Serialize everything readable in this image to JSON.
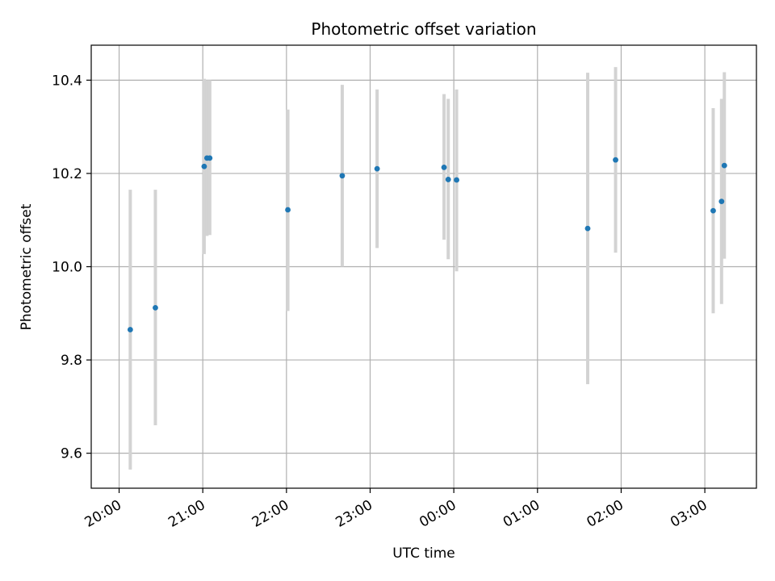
{
  "chart_data": {
    "type": "scatter",
    "title": "Photometric offset variation",
    "xlabel": "UTC time",
    "ylabel": "Photometric offset",
    "x_type": "time",
    "xlim": [
      "19:40",
      "03:37"
    ],
    "ylim": [
      9.525,
      10.475
    ],
    "x_ticks": [
      "20:00",
      "21:00",
      "22:00",
      "23:00",
      "00:00",
      "01:00",
      "02:00",
      "03:00"
    ],
    "y_ticks": [
      9.6,
      9.8,
      10.0,
      10.2,
      10.4
    ],
    "y_tick_labels": [
      "9.6",
      "9.8",
      "10.0",
      "10.2",
      "10.4"
    ],
    "grid": true,
    "colors": {
      "marker": "#1f77b4",
      "errorbar": "#d3d3d3",
      "grid": "#b0b0b0"
    },
    "series": [
      {
        "points": [
          {
            "x": "20:08",
            "y": 9.865,
            "ymin": 9.565,
            "ymax": 10.165
          },
          {
            "x": "20:26",
            "y": 9.912,
            "ymin": 9.66,
            "ymax": 10.165
          },
          {
            "x": "21:01",
            "y": 10.215,
            "ymin": 10.027,
            "ymax": 10.403
          },
          {
            "x": "21:03",
            "y": 10.233,
            "ymin": 10.066,
            "ymax": 10.4
          },
          {
            "x": "21:05",
            "y": 10.233,
            "ymin": 10.068,
            "ymax": 10.4
          },
          {
            "x": "22:01",
            "y": 10.122,
            "ymin": 9.905,
            "ymax": 10.337
          },
          {
            "x": "22:40",
            "y": 10.195,
            "ymin": 10.0,
            "ymax": 10.39
          },
          {
            "x": "23:05",
            "y": 10.21,
            "ymin": 10.04,
            "ymax": 10.38
          },
          {
            "x": "23:53",
            "y": 10.213,
            "ymin": 10.058,
            "ymax": 10.37
          },
          {
            "x": "23:56",
            "y": 10.187,
            "ymin": 10.016,
            "ymax": 10.36
          },
          {
            "x": "00:02",
            "y": 10.186,
            "ymin": 9.99,
            "ymax": 10.38
          },
          {
            "x": "01:36",
            "y": 10.082,
            "ymin": 9.748,
            "ymax": 10.416
          },
          {
            "x": "01:56",
            "y": 10.229,
            "ymin": 10.03,
            "ymax": 10.428
          },
          {
            "x": "03:06",
            "y": 10.12,
            "ymin": 9.9,
            "ymax": 10.34
          },
          {
            "x": "03:12",
            "y": 10.14,
            "ymin": 9.92,
            "ymax": 10.36
          },
          {
            "x": "03:14",
            "y": 10.217,
            "ymin": 10.017,
            "ymax": 10.417
          }
        ]
      }
    ]
  }
}
